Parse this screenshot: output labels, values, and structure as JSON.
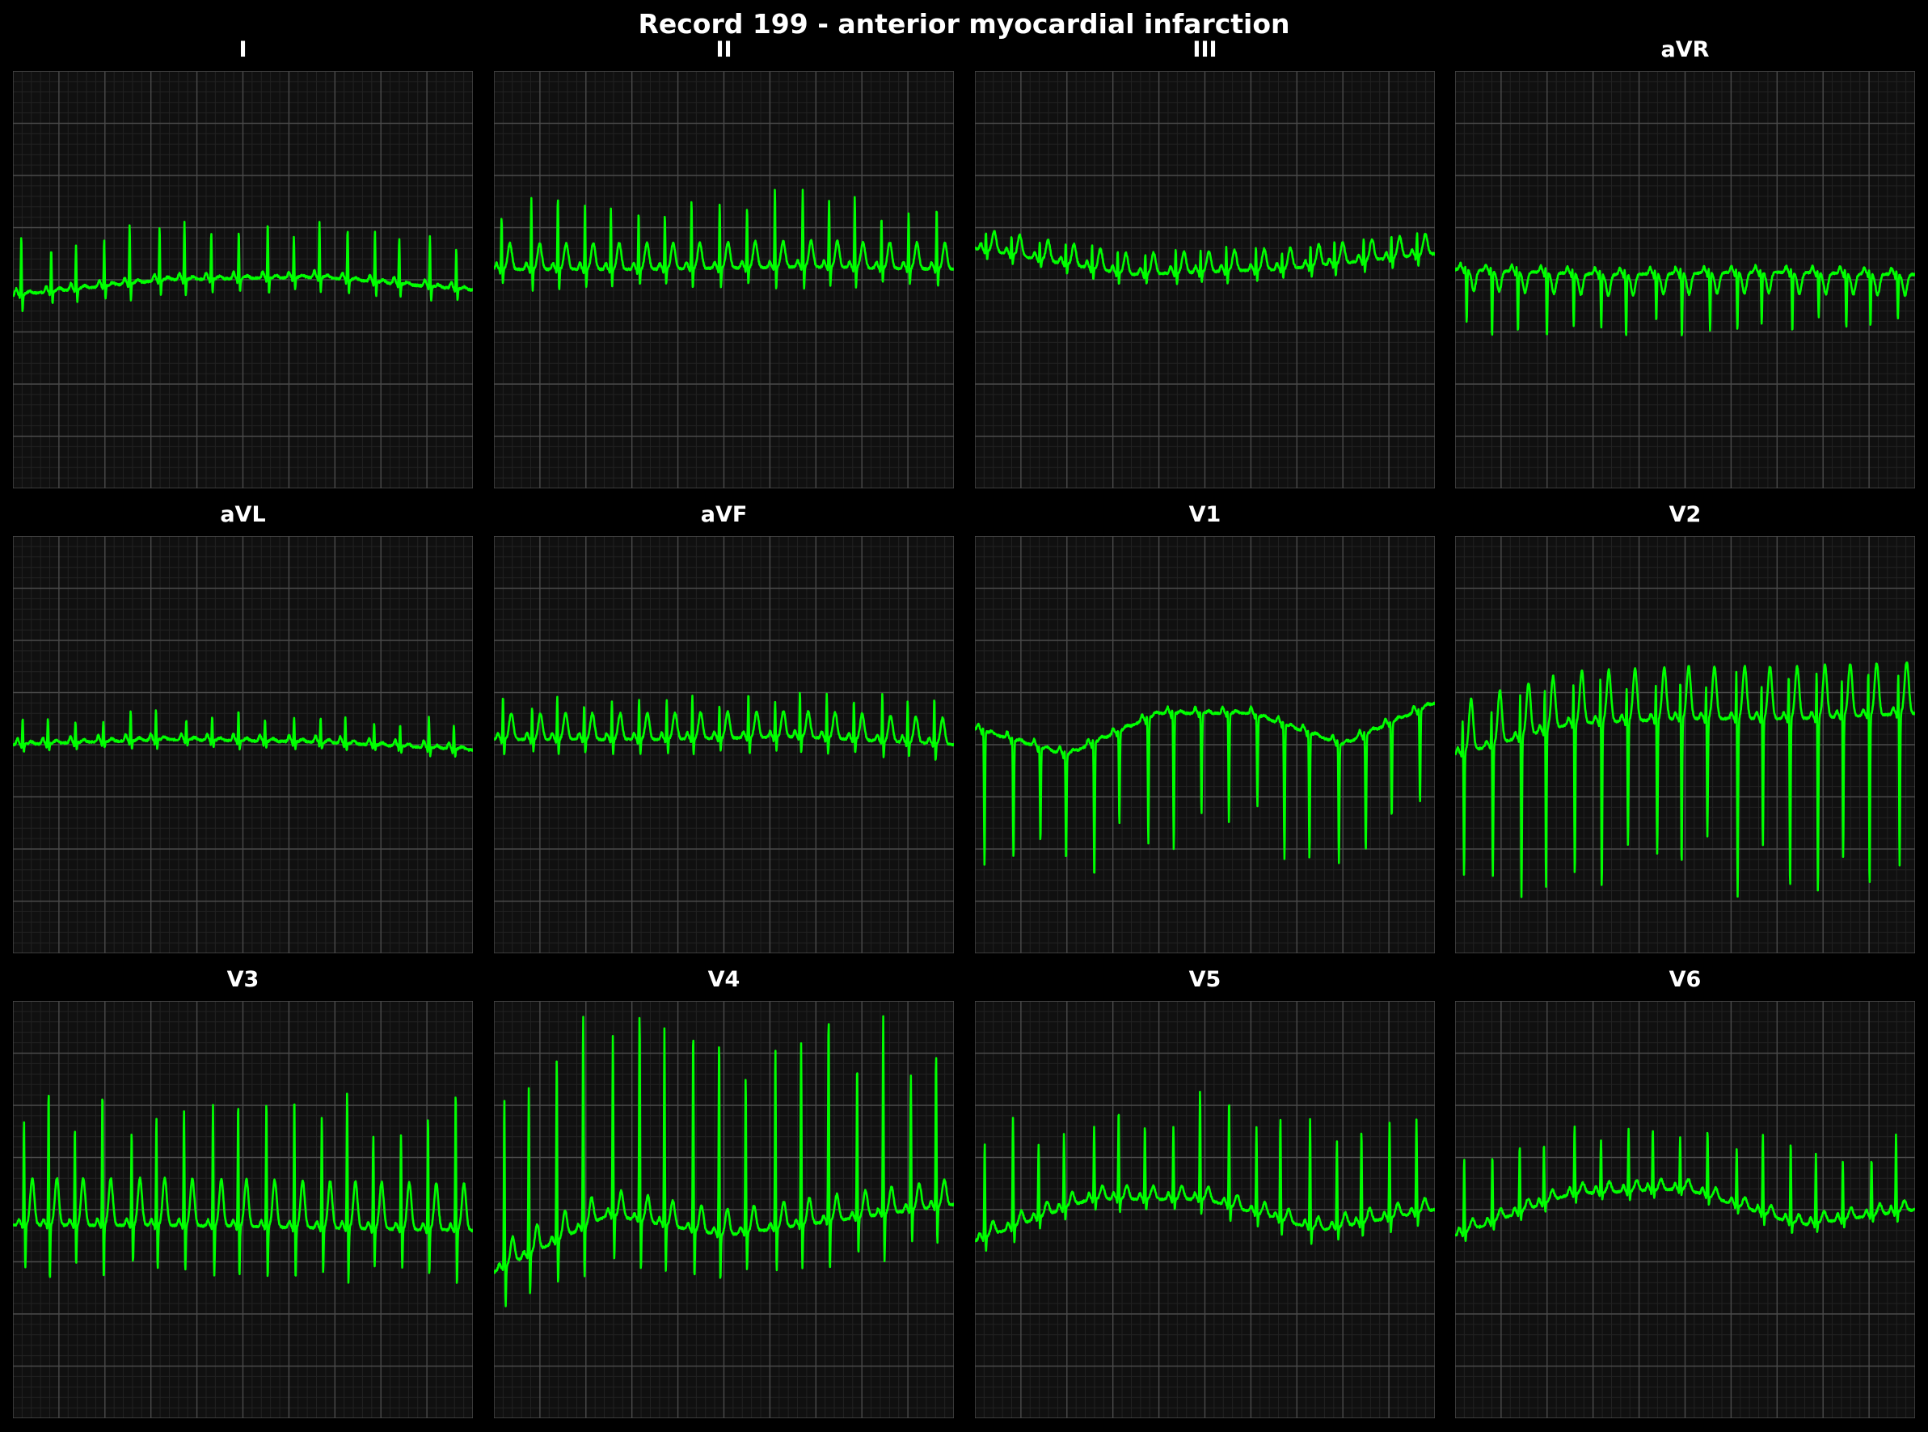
{
  "title": "Record 199 - anterior myocardial infarction",
  "colors": {
    "background": "#000000",
    "panel": "#101010",
    "grid_major": "#4a4a4a",
    "grid_minor": "#222222",
    "trace": "#00ff00",
    "text": "#ffffff"
  },
  "chart_data": [
    {
      "type": "line",
      "title": "I",
      "grid": true,
      "ylim": [
        -4,
        4
      ],
      "beats": 17,
      "r": 1.0,
      "s": -0.3,
      "t": 0.05,
      "baseline": [
        -0.3,
        0.0,
        0.05,
        -0.2
      ]
    },
    {
      "type": "line",
      "title": "II",
      "grid": true,
      "ylim": [
        -4,
        4
      ],
      "beats": 17,
      "r": 1.3,
      "s": -0.4,
      "t": 0.5,
      "baseline": [
        0.2,
        0.2,
        0.25,
        0.2
      ]
    },
    {
      "type": "line",
      "title": "III",
      "grid": true,
      "ylim": [
        -4,
        4
      ],
      "beats": 17,
      "r": 0.4,
      "s": -0.2,
      "t": 0.4,
      "baseline": [
        0.6,
        0.1,
        0.2,
        0.5
      ]
    },
    {
      "type": "line",
      "title": "aVR",
      "grid": true,
      "ylim": [
        -4,
        4
      ],
      "beats": 17,
      "r": 0.1,
      "s": -1.1,
      "t": -0.4,
      "baseline": [
        0.2,
        0.1,
        0.15,
        0.1
      ]
    },
    {
      "type": "line",
      "title": "aVL",
      "grid": true,
      "ylim": [
        -4,
        4
      ],
      "beats": 17,
      "r": 0.5,
      "s": -0.15,
      "t": 0.05,
      "baseline": [
        0.0,
        0.1,
        0.05,
        -0.1
      ]
    },
    {
      "type": "line",
      "title": "aVF",
      "grid": true,
      "ylim": [
        -4,
        4
      ],
      "beats": 17,
      "r": 0.8,
      "s": -0.3,
      "t": 0.5,
      "baseline": [
        0.1,
        0.1,
        0.15,
        0.0
      ]
    },
    {
      "type": "line",
      "title": "V1",
      "grid": true,
      "ylim": [
        -4,
        4
      ],
      "beats": 17,
      "r": 0.1,
      "s": -2.2,
      "t": 0.05,
      "baseline": [
        0.3,
        -0.2,
        0.6,
        0.6,
        0.0,
        0.8
      ]
    },
    {
      "type": "line",
      "title": "V2",
      "grid": true,
      "ylim": [
        -4,
        4
      ],
      "beats": 17,
      "r": 0.9,
      "s": -3.0,
      "t": 1.0,
      "baseline": [
        -0.2,
        0.4,
        0.5,
        0.5,
        0.6
      ]
    },
    {
      "type": "line",
      "title": "V3",
      "grid": true,
      "ylim": [
        -4,
        4
      ],
      "beats": 17,
      "r": 2.4,
      "s": -1.0,
      "t": 0.9,
      "baseline": [
        -0.3,
        -0.3,
        -0.35,
        -0.4
      ]
    },
    {
      "type": "line",
      "title": "V4",
      "grid": true,
      "ylim": [
        -4,
        4
      ],
      "beats": 17,
      "r": 3.5,
      "s": -0.9,
      "t": 0.5,
      "baseline": [
        -1.2,
        -0.1,
        -0.5,
        -0.2,
        0.1
      ]
    },
    {
      "type": "line",
      "title": "V5",
      "grid": true,
      "ylim": [
        -4,
        4
      ],
      "beats": 17,
      "r": 1.8,
      "s": -0.3,
      "t": 0.25,
      "baseline": [
        -0.6,
        0.2,
        0.2,
        -0.4,
        0.0
      ]
    },
    {
      "type": "line",
      "title": "V6",
      "grid": true,
      "ylim": [
        -4,
        4
      ],
      "beats": 17,
      "r": 1.3,
      "s": -0.2,
      "t": 0.2,
      "baseline": [
        -0.5,
        0.3,
        0.4,
        -0.3,
        0.0
      ]
    }
  ]
}
